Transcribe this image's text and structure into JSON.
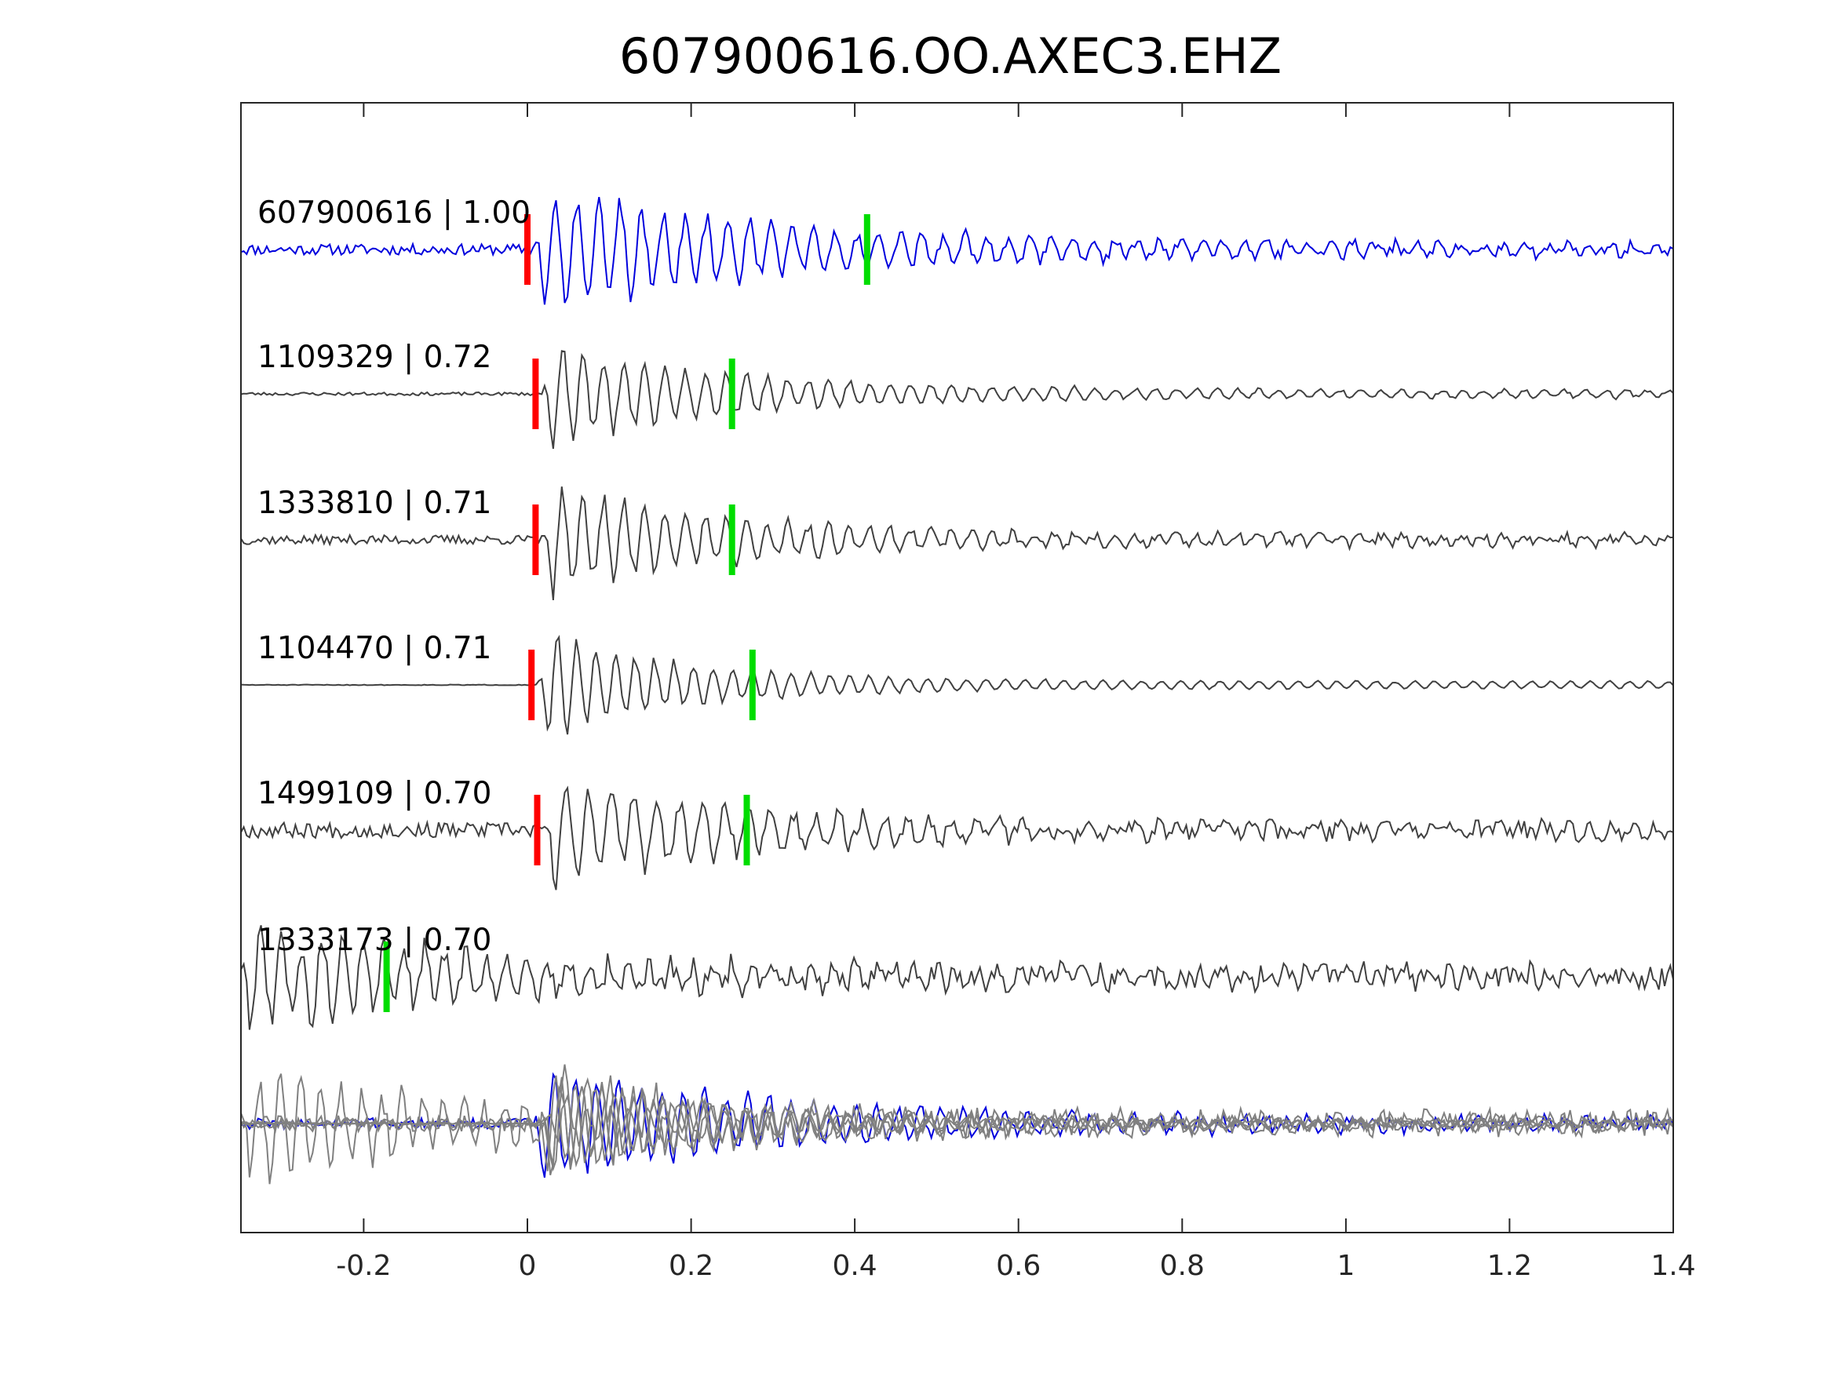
{
  "chart_data": {
    "type": "line",
    "title": "607900616.OO.AXEC3.EHZ",
    "xlabel": "",
    "ylabel": "",
    "xlim": [
      -0.35,
      1.4
    ],
    "xticks": [
      -0.2,
      0,
      0.2,
      0.4,
      0.6,
      0.8,
      1,
      1.2,
      1.4
    ],
    "xtick_labels": [
      "-0.2",
      "0",
      "0.2",
      "0.4",
      "0.6",
      "0.8",
      "1",
      "1.2",
      "1.4"
    ],
    "grid": false,
    "legend": "none",
    "colors": {
      "template": "#0000dd",
      "match": "#404040",
      "overlay_match": "#808080",
      "p_pick": "#ff0000",
      "s_pick": "#00dd00"
    },
    "series": [
      {
        "name": "607900616",
        "label": "607900616 | 1.00",
        "id": "607900616",
        "cc": "1.00",
        "role": "template",
        "p_pick": 0.0,
        "s_pick": 0.415
      },
      {
        "name": "1109329",
        "label": "1109329 | 0.72",
        "id": "1109329",
        "cc": "0.72",
        "role": "match",
        "p_pick": 0.01,
        "s_pick": 0.25
      },
      {
        "name": "1333810",
        "label": "1333810 | 0.71",
        "id": "1333810",
        "cc": "0.71",
        "role": "match",
        "p_pick": 0.01,
        "s_pick": 0.25
      },
      {
        "name": "1104470",
        "label": "1104470 | 0.71",
        "id": "1104470",
        "cc": "0.71",
        "role": "match",
        "p_pick": 0.005,
        "s_pick": 0.275
      },
      {
        "name": "1499109",
        "label": "1499109 | 0.70",
        "id": "1499109",
        "cc": "0.70",
        "role": "match",
        "p_pick": 0.012,
        "s_pick": 0.268
      },
      {
        "name": "1333173",
        "label": "1333173 | 0.70",
        "id": "1333173",
        "cc": "0.70",
        "role": "match",
        "p_pick": null,
        "s_pick": -0.172
      }
    ]
  }
}
